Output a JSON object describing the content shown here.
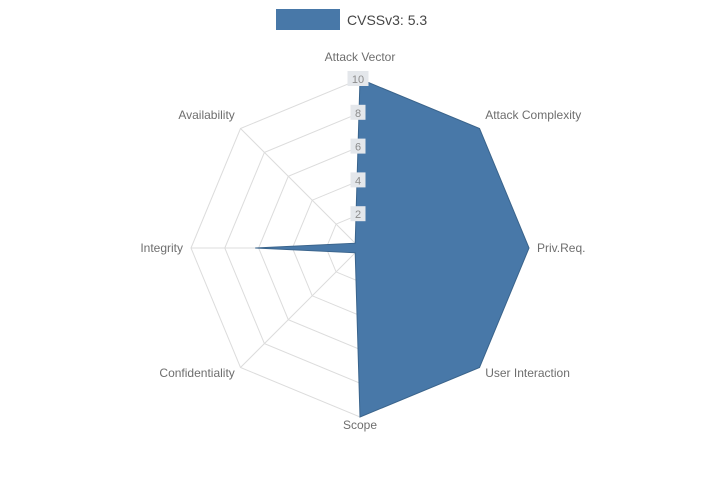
{
  "chart_data": {
    "type": "radar",
    "legend": "CVSSv3: 5.3",
    "categories": [
      "Attack Vector",
      "Attack Complexity",
      "Priv.Req.",
      "User Interaction",
      "Scope",
      "Confidentiality",
      "Integrity",
      "Availability"
    ],
    "series": [
      {
        "name": "CVSSv3: 5.3",
        "values": [
          10,
          10,
          10,
          10,
          10,
          0.4,
          6.2,
          0.4
        ]
      }
    ],
    "ticks": [
      2,
      4,
      6,
      8,
      10
    ],
    "axis_max": 10,
    "grid": "on",
    "legend_position": "top",
    "colors": {
      "series_fill": "#4878A8",
      "series_stroke": "#3A648C",
      "grid": "#DCDCDC",
      "tick_bg": "#E4E7EB",
      "tick_text": "#8C8C8C",
      "label_text": "#6E6E6E",
      "legend_text": "#464646"
    }
  }
}
